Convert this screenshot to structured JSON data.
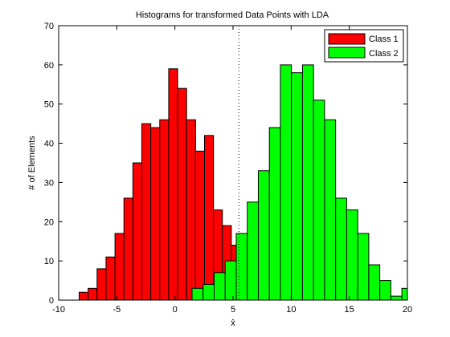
{
  "chart_data": {
    "type": "bar",
    "title": "Histograms for transformed Data Points with LDA",
    "xlabel": "x̂",
    "ylabel": "# of Elements",
    "xlim": [
      -10,
      20
    ],
    "ylim": [
      0,
      70
    ],
    "xticks": [
      -10,
      -5,
      0,
      5,
      10,
      15,
      20
    ],
    "yticks": [
      0,
      10,
      20,
      30,
      40,
      50,
      60,
      70
    ],
    "grid": false,
    "legend_position": "top-right",
    "threshold_x": 5.5,
    "series": [
      {
        "name": "Class 1",
        "color": "#ff0000",
        "bin_width": 0.77,
        "bins": [
          [
            -7.85,
            2
          ],
          [
            -7.08,
            3
          ],
          [
            -6.31,
            8
          ],
          [
            -5.54,
            11
          ],
          [
            -4.77,
            17
          ],
          [
            -4.0,
            26
          ],
          [
            -3.23,
            35
          ],
          [
            -2.46,
            45
          ],
          [
            -1.69,
            44
          ],
          [
            -0.92,
            46
          ],
          [
            -0.15,
            59
          ],
          [
            0.62,
            54
          ],
          [
            1.39,
            46
          ],
          [
            2.16,
            38
          ],
          [
            2.93,
            42
          ],
          [
            3.7,
            23
          ],
          [
            4.47,
            19
          ],
          [
            5.24,
            14
          ],
          [
            6.01,
            2
          ],
          [
            6.78,
            6
          ],
          [
            7.55,
            3
          ]
        ]
      },
      {
        "name": "Class 2",
        "color": "#00ff00",
        "bin_width": 0.95,
        "bins": [
          [
            1.95,
            3
          ],
          [
            2.9,
            4
          ],
          [
            3.85,
            7
          ],
          [
            4.8,
            10
          ],
          [
            5.75,
            17
          ],
          [
            6.7,
            25
          ],
          [
            7.65,
            33
          ],
          [
            8.6,
            44
          ],
          [
            9.55,
            60
          ],
          [
            10.5,
            58
          ],
          [
            11.45,
            60
          ],
          [
            12.4,
            51
          ],
          [
            13.35,
            46
          ],
          [
            14.3,
            26
          ],
          [
            15.25,
            23
          ],
          [
            16.2,
            17
          ],
          [
            17.15,
            9
          ],
          [
            18.1,
            5
          ],
          [
            19.05,
            1
          ],
          [
            20.0,
            3
          ]
        ]
      }
    ]
  }
}
